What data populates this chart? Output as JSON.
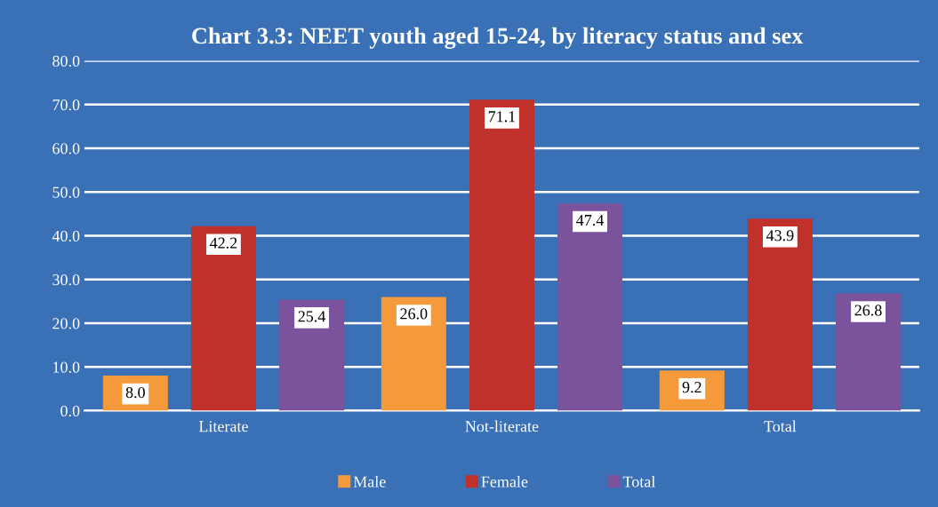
{
  "chart_data": {
    "type": "bar",
    "title": "Chart 3.3: NEET youth aged 15-24, by literacy status and sex",
    "categories": [
      "Literate",
      "Not-literate",
      "Total"
    ],
    "series": [
      {
        "name": "Male",
        "color": "#f59a3a",
        "values": [
          8.0,
          26.0,
          9.2
        ],
        "value_labels": [
          "8.0",
          "26.0",
          "9.2"
        ]
      },
      {
        "name": "Female",
        "color": "#c0312b",
        "values": [
          42.2,
          71.1,
          43.9
        ],
        "value_labels": [
          "42.2",
          "71.1",
          "43.9"
        ]
      },
      {
        "name": "Total",
        "color": "#7b529c",
        "values": [
          25.4,
          47.4,
          26.8
        ],
        "value_labels": [
          "25.4",
          "47.4",
          "26.8"
        ]
      }
    ],
    "ylim": [
      0,
      80
    ],
    "yticks": [
      {
        "value": 0,
        "label": "0.0"
      },
      {
        "value": 10,
        "label": "10.0"
      },
      {
        "value": 20,
        "label": "20.0"
      },
      {
        "value": 30,
        "label": "30.0"
      },
      {
        "value": 40,
        "label": "40.0"
      },
      {
        "value": 50,
        "label": "50.0"
      },
      {
        "value": 60,
        "label": "60.0"
      },
      {
        "value": 70,
        "label": "70.0"
      },
      {
        "value": 80,
        "label": "80.0"
      }
    ],
    "grid": "y",
    "legend": "bottom"
  }
}
